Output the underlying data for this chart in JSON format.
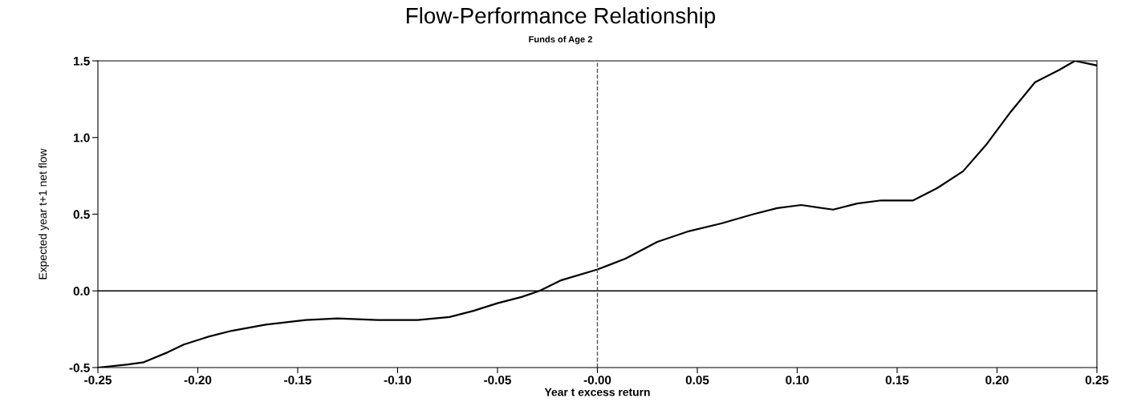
{
  "chart_data": {
    "type": "line",
    "title": "Flow-Performance Relationship",
    "subtitle": "Funds of Age 2",
    "xlabel": "Year t excess return",
    "ylabel": "Expected year t+1 net flow",
    "x": [
      -0.25,
      -0.235,
      -0.227,
      -0.215,
      -0.207,
      -0.195,
      -0.183,
      -0.166,
      -0.146,
      -0.13,
      -0.11,
      -0.09,
      -0.074,
      -0.062,
      -0.05,
      -0.038,
      -0.029,
      -0.018,
      0.0,
      0.014,
      0.03,
      0.046,
      0.062,
      0.078,
      0.09,
      0.102,
      0.118,
      0.13,
      0.142,
      0.158,
      0.17,
      0.183,
      0.195,
      0.207,
      0.219,
      0.231,
      0.239,
      0.25
    ],
    "series": [
      {
        "color": "#000000",
        "values": [
          -0.5,
          -0.48,
          -0.465,
          -0.4,
          -0.35,
          -0.3,
          -0.26,
          -0.22,
          -0.19,
          -0.18,
          -0.19,
          -0.19,
          -0.17,
          -0.13,
          -0.08,
          -0.04,
          0.0,
          0.07,
          0.14,
          0.21,
          0.32,
          0.39,
          0.44,
          0.5,
          0.54,
          0.56,
          0.53,
          0.57,
          0.59,
          0.59,
          0.67,
          0.78,
          0.96,
          1.17,
          1.36,
          1.44,
          1.5,
          1.47
        ]
      }
    ],
    "xlim": [
      -0.25,
      0.25
    ],
    "ylim": [
      -0.5,
      1.5
    ],
    "xticks": [
      {
        "value": -0.25,
        "label": "-0.25"
      },
      {
        "value": -0.2,
        "label": "-0.20"
      },
      {
        "value": -0.15,
        "label": "-0.15"
      },
      {
        "value": -0.1,
        "label": "-0.10"
      },
      {
        "value": -0.05,
        "label": "-0.05"
      },
      {
        "value": 0,
        "label": "-0.00"
      },
      {
        "value": 0.05,
        "label": "0.05"
      },
      {
        "value": 0.1,
        "label": "0.10"
      },
      {
        "value": 0.15,
        "label": "0.15"
      },
      {
        "value": 0.2,
        "label": "0.20"
      },
      {
        "value": 0.25,
        "label": "0.25"
      }
    ],
    "yticks": [
      {
        "value": -0.5,
        "label": "-0.5"
      },
      {
        "value": 0,
        "label": "0.0"
      },
      {
        "value": 0.5,
        "label": "0.5"
      },
      {
        "value": 1,
        "label": "1.0"
      },
      {
        "value": 1.5,
        "label": "1.5"
      }
    ],
    "ref_lines": [
      {
        "axis": "y",
        "value": 0,
        "color": "#000000",
        "line_style": "solid"
      },
      {
        "axis": "x",
        "value": 0,
        "color": "#555555",
        "line_style": "dashed"
      }
    ],
    "grid": false,
    "legend": false,
    "marker": "none",
    "line_style": "solid"
  }
}
